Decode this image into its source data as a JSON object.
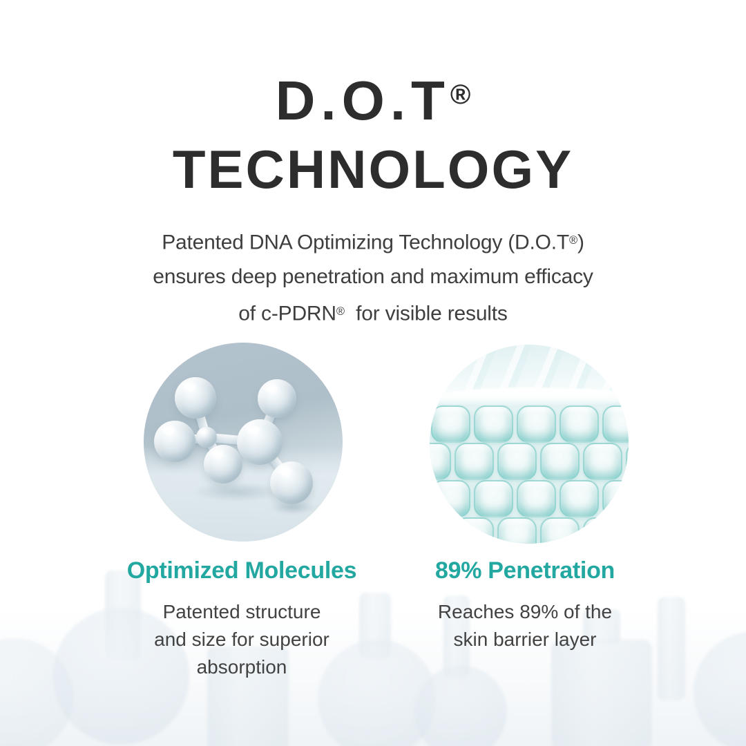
{
  "title": {
    "line1": "D.O.T",
    "line1_reg": "®",
    "line2": "TECHNOLOGY"
  },
  "subtitle": {
    "l1a": "Patented DNA Optimizing Technology (D.O.T",
    "l1_reg": "®",
    "l1b": ")",
    "l2": "ensures deep penetration and maximum efficacy",
    "l3a": "of c-PDRN",
    "l3_reg": "®",
    "l3b": "  for visible results"
  },
  "features": [
    {
      "id": "optimized-molecules",
      "image": "3d-glass-molecule",
      "heading": "Optimized Molecules",
      "body_lines": [
        "Patented structure",
        "and size for superior",
        "absorption"
      ]
    },
    {
      "id": "89-percent-penetration",
      "image": "skin-barrier-cell-grid",
      "heading": "89% Penetration",
      "body_lines": [
        "Reaches 89% of the",
        "skin barrier layer"
      ]
    }
  ],
  "colors": {
    "accent_teal": "#23a8a1",
    "title_dark": "#2d2d2d",
    "body_dark": "#424242",
    "molecule_circle_bg": "#b4c3cd",
    "barrier_circle_bg": "#e2f1f2"
  }
}
